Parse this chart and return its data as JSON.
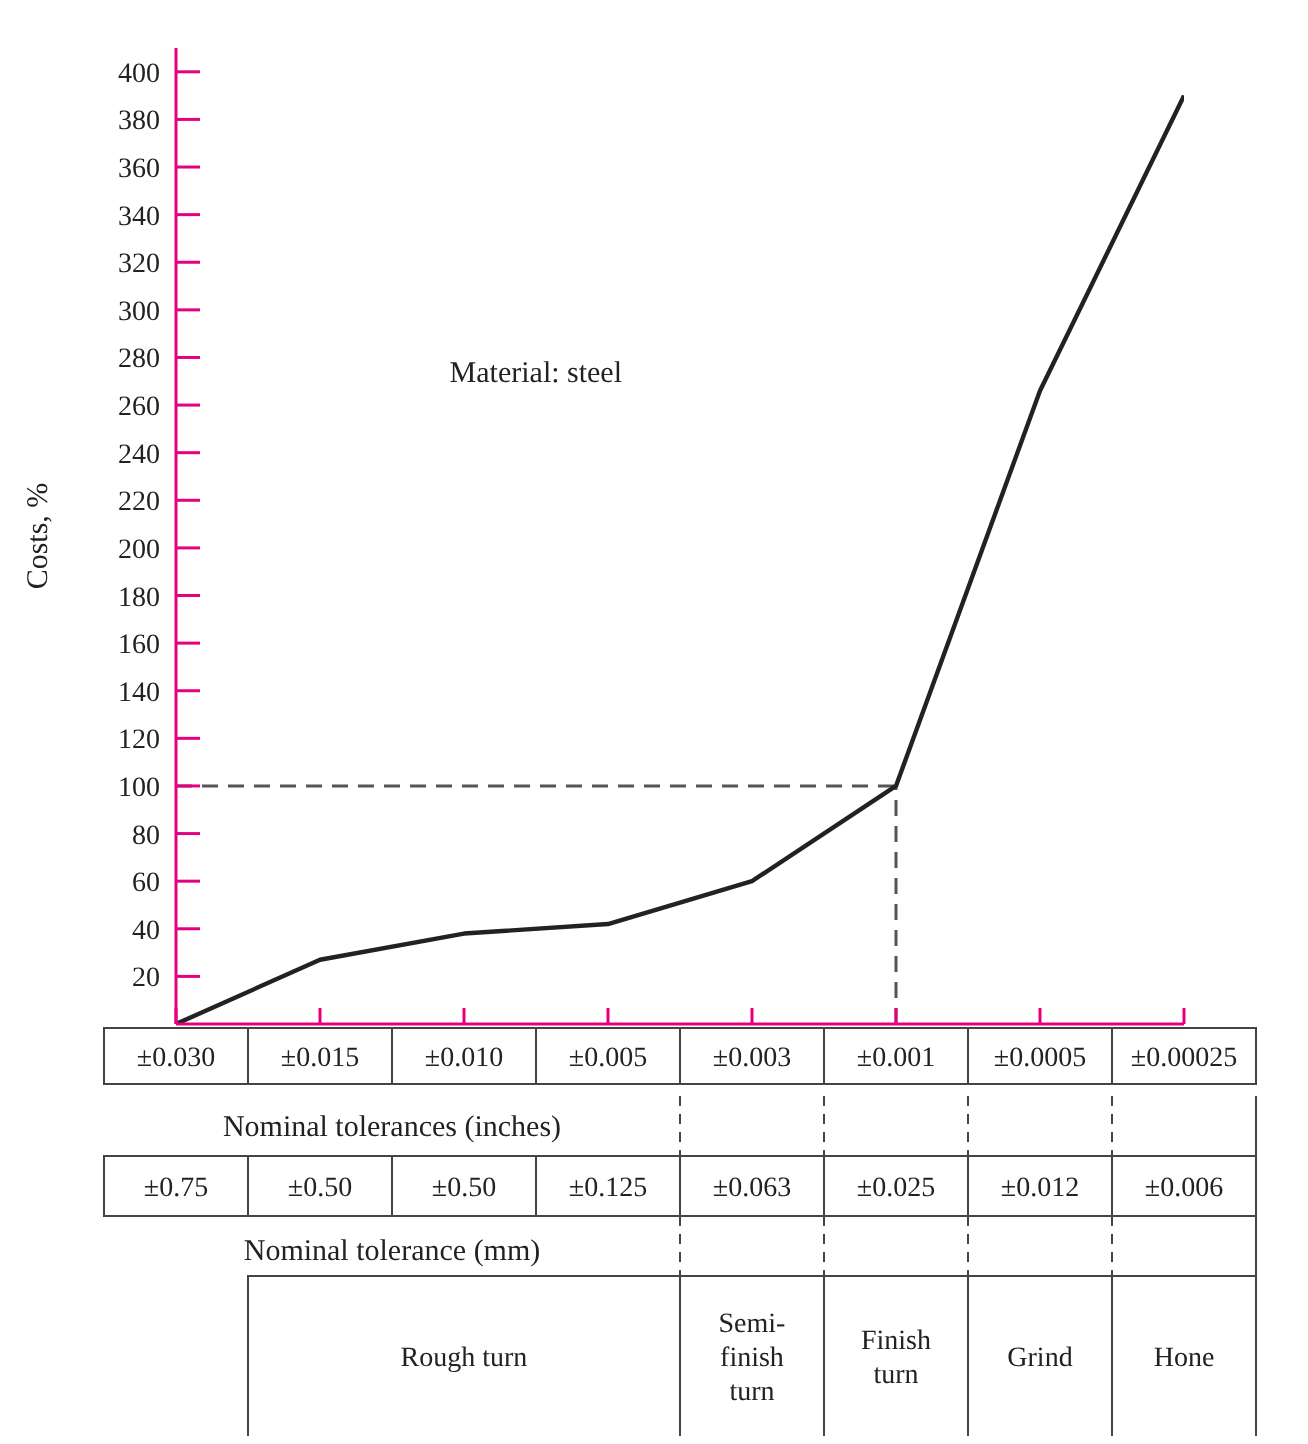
{
  "chart_data": {
    "type": "line",
    "ylabel": "Costs, %",
    "xlabel": "Nominal tolerances (inches)",
    "categories": [
      "±0.030",
      "±0.015",
      "±0.010",
      "±0.005",
      "±0.003",
      "±0.001",
      "±0.0005",
      "±0.00025"
    ],
    "values": [
      0,
      27,
      38,
      42,
      60,
      100,
      266,
      390
    ],
    "color": "#222222",
    "ylim": [
      0,
      410
    ],
    "yticks": [
      20,
      40,
      60,
      80,
      100,
      120,
      140,
      160,
      180,
      200,
      220,
      240,
      260,
      280,
      300,
      320,
      340,
      360,
      380,
      400
    ],
    "grid": false,
    "marker": "none",
    "line_style": "solid",
    "ref_lines": [
      {
        "axis": "y",
        "value": 100,
        "line_style": "dashed",
        "color": "#555555"
      },
      {
        "axis": "x",
        "value": "±0.001",
        "line_style": "dashed",
        "color": "#555555"
      }
    ],
    "annotations": [
      "Material: steel",
      "Nominal tolerance (mm)",
      "±0.75",
      "±0.50",
      "±0.50",
      "±0.125",
      "±0.063",
      "±0.025",
      "±0.012",
      "±0.006",
      "Rough turn",
      "Semi-finish turn",
      "Finish turn",
      "Grind",
      "Hone"
    ]
  }
}
